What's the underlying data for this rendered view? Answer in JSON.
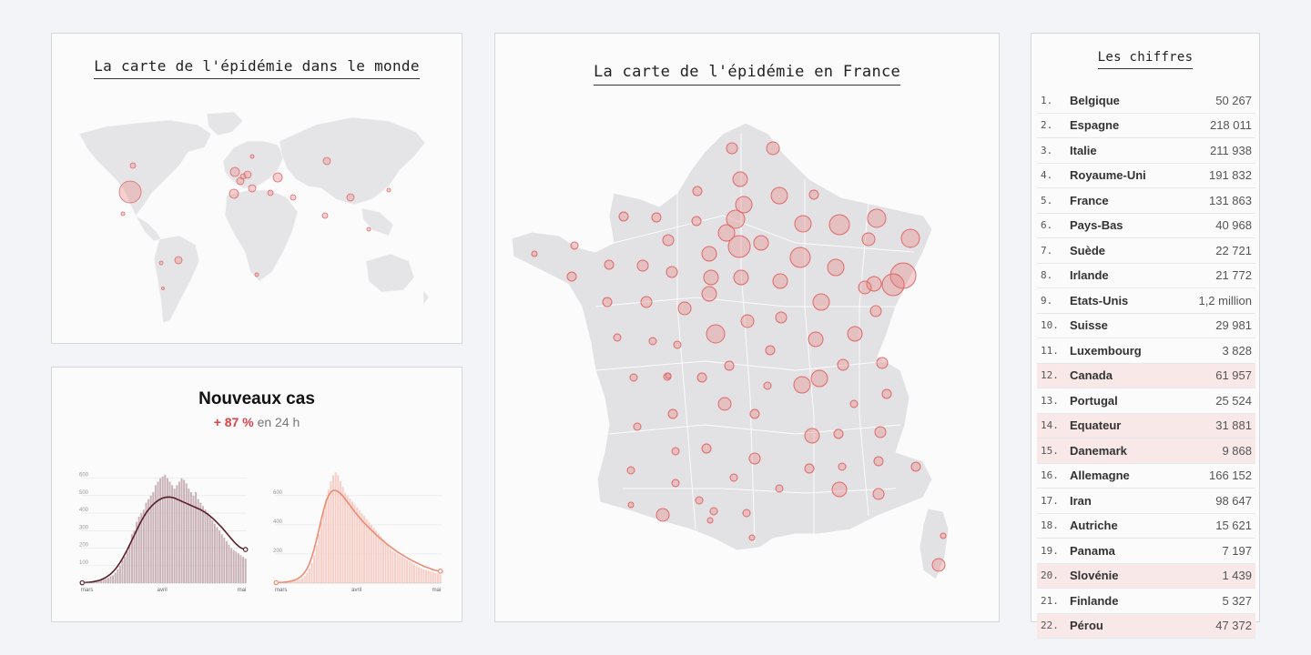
{
  "world_map": {
    "title": "La carte de l'épidémie dans le monde",
    "land_color": "#e5e5e7",
    "bubble_color": "#e88080"
  },
  "france_map": {
    "title": "La carte de l'épidémie en France",
    "land_color": "#e2e2e4",
    "bubble_color": "#e88080"
  },
  "new_cases": {
    "title": "Nouveaux cas",
    "change": "+ 87 %",
    "period": "en 24 h"
  },
  "ranking": {
    "title": "Les chiffres",
    "rows": [
      {
        "rank": "1.",
        "country": "Belgique",
        "value": "50 267",
        "highlight": false
      },
      {
        "rank": "2.",
        "country": "Espagne",
        "value": "218 011",
        "highlight": false
      },
      {
        "rank": "3.",
        "country": "Italie",
        "value": "211 938",
        "highlight": false
      },
      {
        "rank": "4.",
        "country": "Royaume-Uni",
        "value": "191 832",
        "highlight": false
      },
      {
        "rank": "5.",
        "country": "France",
        "value": "131 863",
        "highlight": false
      },
      {
        "rank": "6.",
        "country": "Pays-Bas",
        "value": "40 968",
        "highlight": false
      },
      {
        "rank": "7.",
        "country": "Suède",
        "value": "22 721",
        "highlight": false
      },
      {
        "rank": "8.",
        "country": "Irlande",
        "value": "21 772",
        "highlight": false
      },
      {
        "rank": "9.",
        "country": "Etats-Unis",
        "value": "1,2 million",
        "highlight": false
      },
      {
        "rank": "10.",
        "country": "Suisse",
        "value": "29 981",
        "highlight": false
      },
      {
        "rank": "11.",
        "country": "Luxembourg",
        "value": "3 828",
        "highlight": false
      },
      {
        "rank": "12.",
        "country": "Canada",
        "value": "61 957",
        "highlight": true
      },
      {
        "rank": "13.",
        "country": "Portugal",
        "value": "25 524",
        "highlight": false
      },
      {
        "rank": "14.",
        "country": "Equateur",
        "value": "31 881",
        "highlight": true
      },
      {
        "rank": "15.",
        "country": "Danemark",
        "value": "9 868",
        "highlight": true
      },
      {
        "rank": "16.",
        "country": "Allemagne",
        "value": "166 152",
        "highlight": false
      },
      {
        "rank": "17.",
        "country": "Iran",
        "value": "98 647",
        "highlight": false
      },
      {
        "rank": "18.",
        "country": "Autriche",
        "value": "15 621",
        "highlight": false
      },
      {
        "rank": "19.",
        "country": "Panama",
        "value": "7 197",
        "highlight": false
      },
      {
        "rank": "20.",
        "country": "Slovénie",
        "value": "1 439",
        "highlight": true
      },
      {
        "rank": "21.",
        "country": "Finlande",
        "value": "5 327",
        "highlight": false
      },
      {
        "rank": "22.",
        "country": "Pérou",
        "value": "47 372",
        "highlight": true
      }
    ]
  },
  "chart_data": [
    {
      "type": "bar",
      "x_tick_labels": [
        "mars",
        "avril",
        "mai"
      ],
      "y_tick_labels": [
        "100",
        "200",
        "300",
        "400",
        "500",
        "600"
      ],
      "ylim": [
        0,
        650
      ],
      "bar_color": "#b99aa3",
      "line_color": "#5a1e2a",
      "values": [
        5,
        3,
        6,
        8,
        6,
        10,
        12,
        15,
        18,
        20,
        25,
        30,
        40,
        45,
        60,
        80,
        100,
        130,
        150,
        180,
        220,
        280,
        300,
        350,
        380,
        400,
        420,
        460,
        480,
        500,
        520,
        560,
        580,
        600,
        610,
        620,
        600,
        580,
        560,
        540,
        560,
        580,
        600,
        590,
        570,
        540,
        520,
        500,
        520,
        480,
        460,
        440,
        420,
        400,
        380,
        360,
        340,
        320,
        300,
        280,
        260,
        240,
        220,
        200,
        190,
        180,
        170,
        160,
        150,
        140
      ],
      "trend": [
        2,
        3,
        4,
        5,
        7,
        9,
        12,
        15,
        20,
        26,
        33,
        42,
        52,
        65,
        80,
        98,
        118,
        140,
        165,
        190,
        218,
        246,
        274,
        302,
        330,
        356,
        380,
        402,
        420,
        436,
        450,
        462,
        472,
        480,
        486,
        490,
        492,
        492,
        490,
        486,
        480,
        474,
        468,
        462,
        456,
        450,
        444,
        438,
        432,
        426,
        420,
        412,
        404,
        394,
        384,
        372,
        360,
        346,
        332,
        318,
        302,
        286,
        270,
        254,
        238,
        224,
        212,
        202,
        196,
        192
      ]
    },
    {
      "type": "bar",
      "x_tick_labels": [
        "mars",
        "avril",
        "mai"
      ],
      "y_tick_labels": [
        "200",
        "400",
        "600"
      ],
      "ylim": [
        0,
        780
      ],
      "bar_color": "#f6c0b6",
      "line_color": "#f08a72",
      "values": [
        4,
        3,
        5,
        6,
        5,
        8,
        10,
        12,
        15,
        20,
        25,
        35,
        50,
        70,
        100,
        140,
        190,
        260,
        340,
        420,
        500,
        580,
        640,
        700,
        740,
        760,
        740,
        700,
        660,
        620,
        600,
        580,
        560,
        540,
        520,
        500,
        480,
        460,
        440,
        420,
        400,
        380,
        360,
        340,
        320,
        300,
        280,
        260,
        240,
        220,
        210,
        200,
        190,
        180,
        170,
        160,
        150,
        140,
        130,
        120,
        110,
        100,
        95,
        90,
        85,
        80,
        75,
        70,
        65,
        60
      ],
      "trend": [
        3,
        4,
        5,
        6,
        8,
        10,
        13,
        17,
        22,
        30,
        40,
        55,
        75,
        100,
        135,
        180,
        235,
        300,
        370,
        440,
        505,
        560,
        600,
        625,
        635,
        635,
        628,
        615,
        598,
        578,
        556,
        534,
        512,
        490,
        470,
        450,
        432,
        414,
        396,
        380,
        364,
        348,
        332,
        318,
        304,
        290,
        276,
        262,
        250,
        238,
        226,
        214,
        204,
        194,
        184,
        174,
        164,
        156,
        148,
        140,
        132,
        124,
        116,
        110,
        104,
        98,
        92,
        88,
        84,
        82
      ]
    }
  ]
}
